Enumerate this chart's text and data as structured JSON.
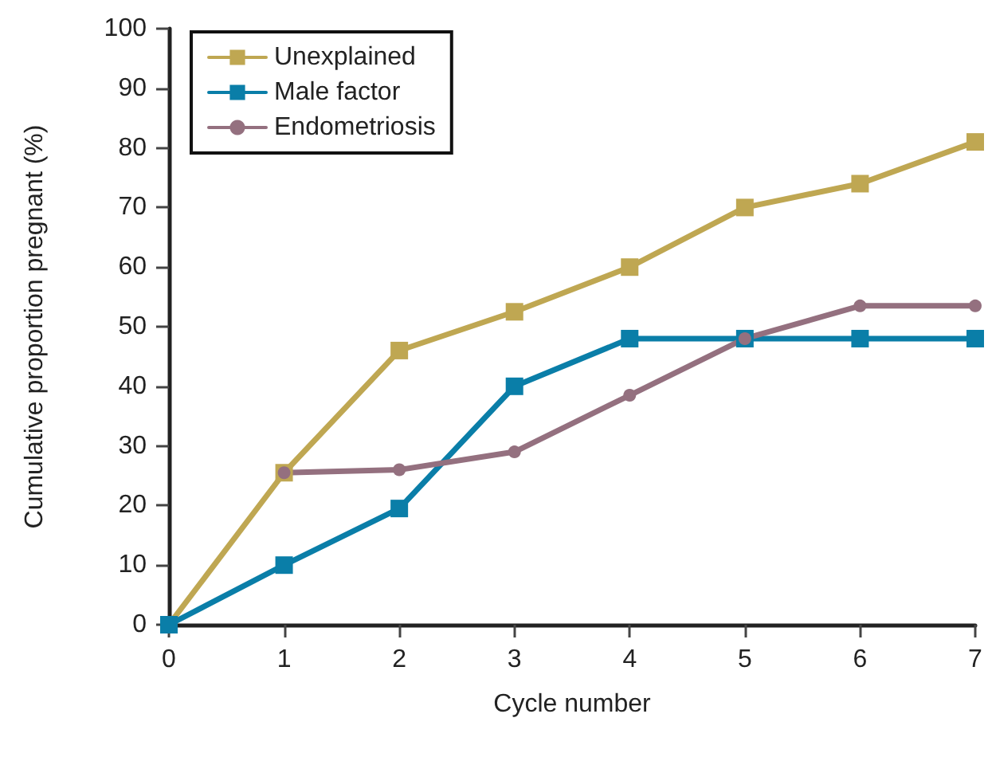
{
  "chart_data": {
    "type": "line",
    "xlabel": "Cycle number",
    "ylabel": "Cumulative proportion pregnant (%)",
    "x": [
      0,
      1,
      2,
      3,
      4,
      5,
      6,
      7
    ],
    "series": [
      {
        "name": "Unexplained",
        "color": "#bfa752",
        "marker": "square",
        "values": [
          0,
          25.5,
          46,
          52.5,
          60,
          70,
          74,
          81
        ]
      },
      {
        "name": "Male factor",
        "color": "#0a7ea8",
        "marker": "square",
        "values": [
          0,
          10,
          19.5,
          40,
          48,
          48,
          48,
          48
        ]
      },
      {
        "name": "Endometriosis",
        "color": "#94707f",
        "marker": "circle",
        "x": [
          1,
          2,
          3,
          4,
          5,
          6,
          7
        ],
        "values": [
          25.5,
          26,
          29,
          38.5,
          48,
          53.5,
          53.5
        ]
      }
    ],
    "xlim": [
      0,
      7
    ],
    "xticks": [
      0,
      1,
      2,
      3,
      4,
      5,
      6,
      7
    ],
    "ylim": [
      0,
      100
    ],
    "yticks": [
      0,
      10,
      20,
      30,
      40,
      50,
      60,
      70,
      80,
      90,
      100
    ],
    "grid": false,
    "legend": "top left"
  }
}
